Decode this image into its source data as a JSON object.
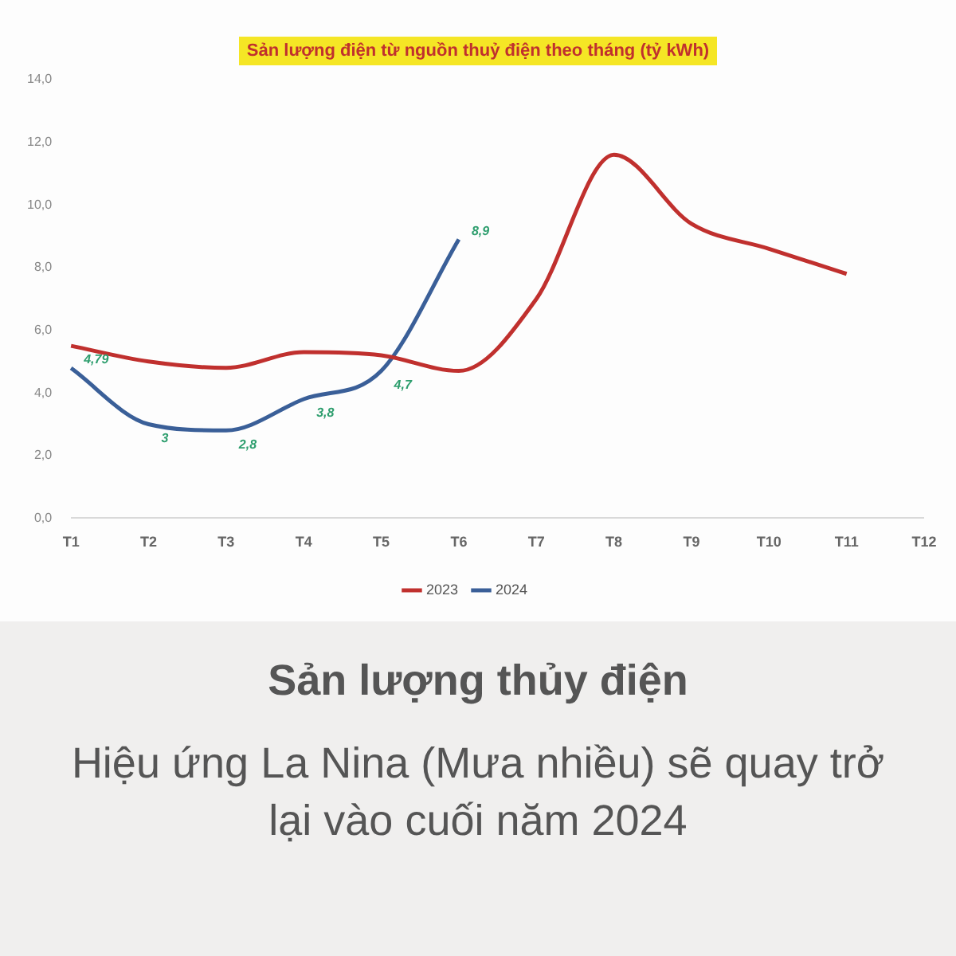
{
  "chart_data": {
    "type": "line",
    "title": "Sản lượng điện từ nguồn thuỷ điện theo tháng (tỷ kWh)",
    "categories": [
      "T1",
      "T2",
      "T3",
      "T4",
      "T5",
      "T6",
      "T7",
      "T8",
      "T9",
      "T10",
      "T11",
      "T12"
    ],
    "series": [
      {
        "name": "2023",
        "color": "#c0302e",
        "values": [
          5.5,
          5.0,
          4.8,
          5.3,
          5.2,
          4.7,
          7.0,
          11.6,
          9.4,
          8.6,
          7.8,
          null
        ]
      },
      {
        "name": "2024",
        "color": "#3a5f98",
        "values": [
          4.79,
          3,
          2.8,
          3.8,
          4.7,
          8.9,
          null,
          null,
          null,
          null,
          null,
          null
        ],
        "value_labels": [
          "4,79",
          "3",
          "2,8",
          "3,8",
          "4,7",
          "8,9",
          null,
          null,
          null,
          null,
          null,
          null
        ]
      }
    ],
    "ylim": [
      0,
      14
    ],
    "yticks": [
      {
        "value": 0,
        "label": "0,0"
      },
      {
        "value": 2,
        "label": "2,0"
      },
      {
        "value": 4,
        "label": "4,0"
      },
      {
        "value": 6,
        "label": "6,0"
      },
      {
        "value": 8,
        "label": "8,0"
      },
      {
        "value": 10,
        "label": "10,0"
      },
      {
        "value": 12,
        "label": "12,0"
      },
      {
        "value": 14,
        "label": "14,0"
      }
    ],
    "grid": false,
    "legend": "bottom",
    "marker": "none",
    "line_style": "solid",
    "annotations": [
      "Sản lượng thủy điện",
      "Hiệu ứng La Nina (Mưa nhiều) sẽ quay trở lại vào cuối năm 2024"
    ]
  }
}
